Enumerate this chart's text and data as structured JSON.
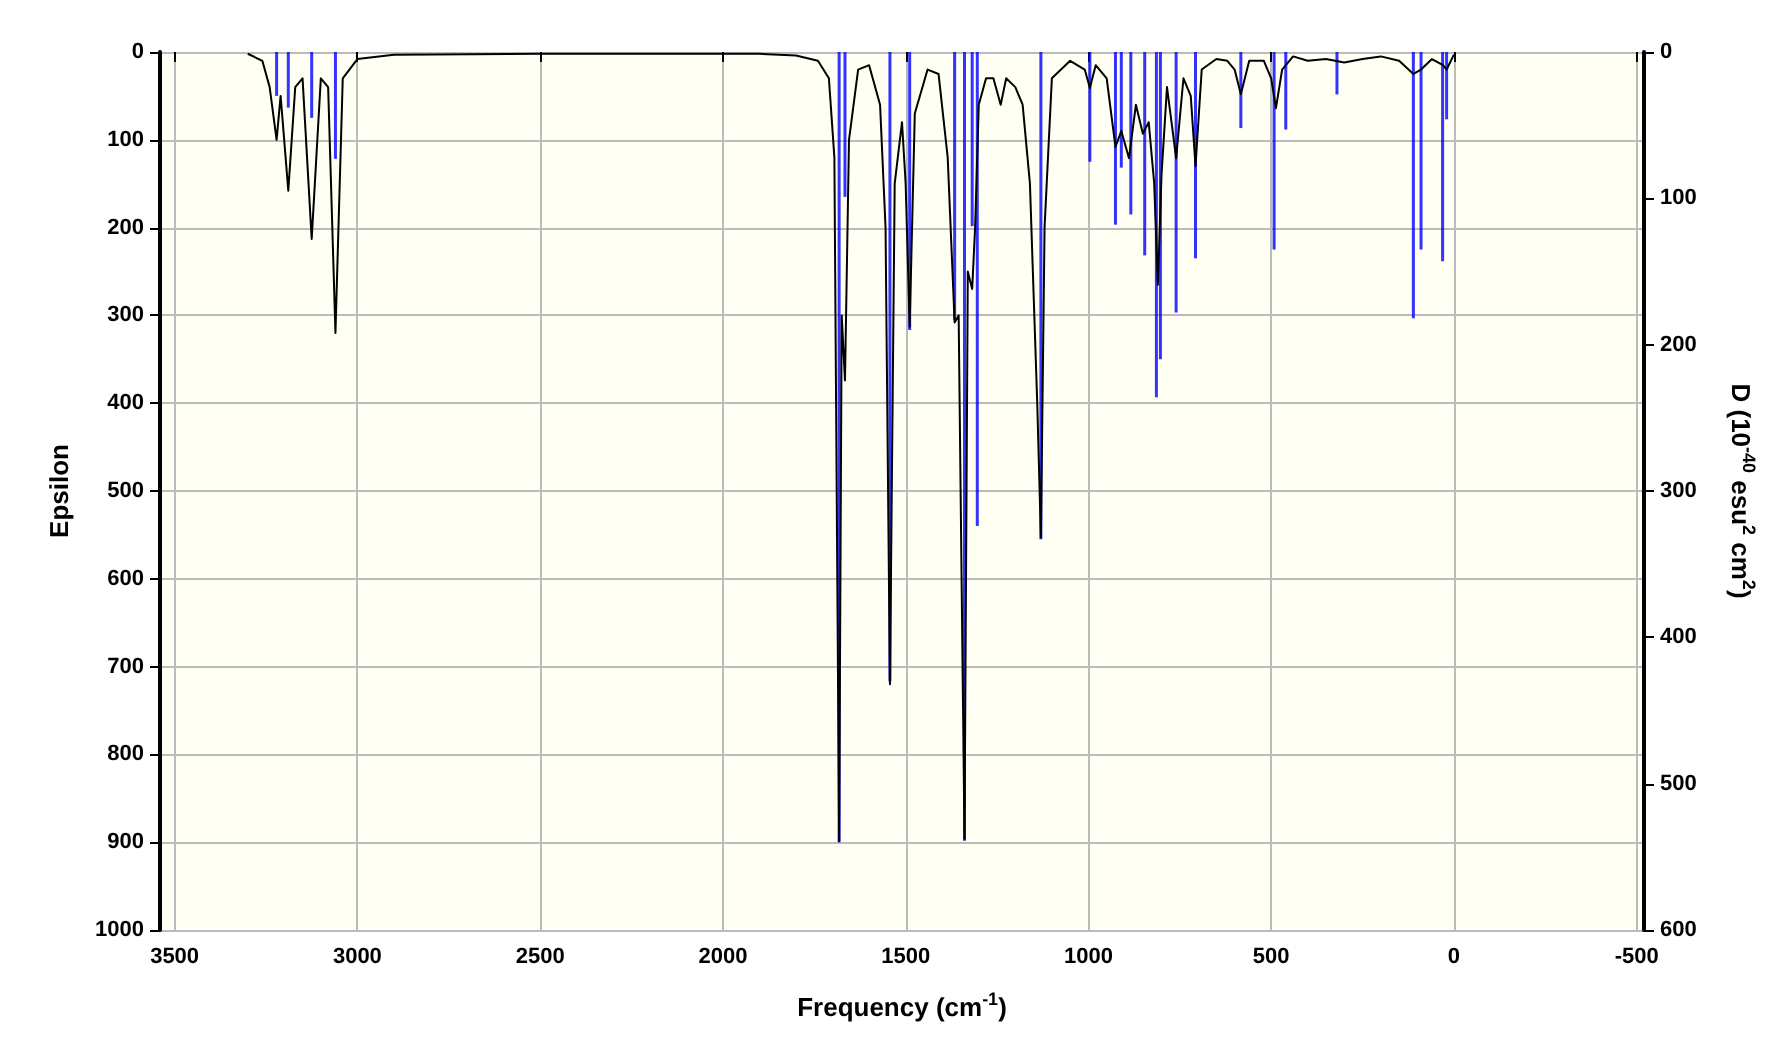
{
  "chart_data": {
    "type": "line",
    "xlabel": "Frequency (cm$^{-1}$)",
    "ylabel": "Epsilon",
    "y2label": "D (10$^{-40}$ esu$^{2}$ cm$^{2}$)",
    "xlim": [
      3540,
      -520
    ],
    "xticks": [
      3500,
      3000,
      2500,
      2000,
      1500,
      1000,
      500,
      0,
      -500
    ],
    "ylim": [
      1000,
      0
    ],
    "yticks": [
      0,
      100,
      200,
      300,
      400,
      500,
      600,
      700,
      800,
      900,
      1000
    ],
    "y2lim": [
      600,
      0
    ],
    "y2ticks": [
      0,
      100,
      200,
      300,
      400,
      500,
      600
    ],
    "grid": true,
    "marker": "none",
    "series": [
      {
        "color": "#000000",
        "x": [
          3300,
          3260,
          3240,
          3221,
          3210,
          3189,
          3170,
          3150,
          3125,
          3100,
          3080,
          3060,
          3040,
          3000,
          2900,
          2500,
          1900,
          1800,
          1740,
          1710,
          1695,
          1682,
          1675,
          1666,
          1655,
          1630,
          1600,
          1570,
          1555,
          1543,
          1530,
          1510,
          1500,
          1489,
          1475,
          1440,
          1410,
          1385,
          1366,
          1355,
          1339,
          1330,
          1318,
          1310,
          1300,
          1280,
          1260,
          1240,
          1225,
          1200,
          1180,
          1160,
          1140,
          1130,
          1120,
          1100,
          1050,
          1010,
          996,
          980,
          950,
          926,
          910,
          889,
          870,
          851,
          835,
          820,
          810,
          800,
          785,
          760,
          740,
          720,
          707,
          690,
          650,
          620,
          600,
          583,
          560,
          520,
          500,
          487,
          470,
          440,
          400,
          350,
          300,
          250,
          200,
          150,
          111,
          90,
          60,
          30,
          20,
          0
        ],
        "values": [
          2,
          10,
          40,
          100,
          50,
          158,
          40,
          30,
          213,
          30,
          40,
          320,
          30,
          8,
          3,
          2,
          2,
          4,
          10,
          30,
          120,
          899,
          300,
          374,
          100,
          20,
          15,
          60,
          200,
          720,
          150,
          80,
          150,
          313,
          70,
          20,
          25,
          120,
          308,
          300,
          896,
          250,
          270,
          200,
          60,
          30,
          30,
          60,
          30,
          40,
          60,
          150,
          400,
          553,
          200,
          30,
          10,
          20,
          41,
          15,
          30,
          108,
          90,
          121,
          60,
          93,
          80,
          150,
          265,
          140,
          40,
          121,
          30,
          50,
          130,
          20,
          8,
          10,
          20,
          48,
          10,
          10,
          30,
          64,
          20,
          5,
          10,
          8,
          12,
          8,
          5,
          10,
          25,
          20,
          8,
          15,
          20,
          3
        ]
      },
      {
        "type": "bar",
        "axis": "y2",
        "color": "#0000ff",
        "x": [
          3221,
          3189,
          3125,
          3060,
          1682,
          1666,
          1543,
          1489,
          1366,
          1339,
          1318,
          1304,
          1130,
          996,
          926,
          910,
          884,
          846,
          814,
          803,
          760,
          707,
          583,
          492,
          460,
          320,
          111,
          90,
          31,
          20
        ],
        "values": [
          30,
          38,
          45,
          73,
          540,
          99,
          430,
          190,
          183,
          539,
          119,
          324,
          333,
          75,
          118,
          79,
          111,
          139,
          236,
          210,
          178,
          141,
          52,
          135,
          53,
          29,
          182,
          135,
          143,
          46
        ]
      }
    ]
  }
}
